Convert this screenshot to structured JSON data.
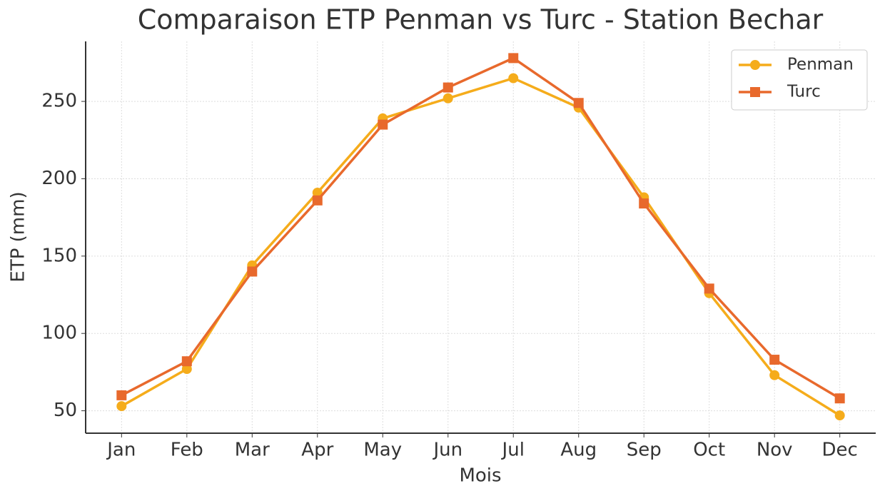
{
  "chart_data": {
    "type": "line",
    "title": "Comparaison ETP Penman vs Turc - Station Bechar",
    "xlabel": "Mois",
    "ylabel": "ETP (mm)",
    "categories": [
      "Jan",
      "Feb",
      "Mar",
      "Apr",
      "May",
      "Jun",
      "Jul",
      "Aug",
      "Sep",
      "Oct",
      "Nov",
      "Dec"
    ],
    "series": [
      {
        "name": "Penman",
        "color": "#f5ac1b",
        "marker": "circle",
        "values": [
          53,
          77,
          144,
          191,
          239,
          252,
          265,
          246,
          188,
          126,
          73,
          47
        ]
      },
      {
        "name": "Turc",
        "color": "#e8692c",
        "marker": "square",
        "values": [
          60,
          82,
          140,
          186,
          235,
          259,
          278,
          249,
          184,
          129,
          83,
          58
        ]
      }
    ],
    "ylim": [
      35.5,
      288.8
    ],
    "yticks": [
      50,
      100,
      150,
      200,
      250
    ],
    "grid": true,
    "legend": "upper right"
  }
}
